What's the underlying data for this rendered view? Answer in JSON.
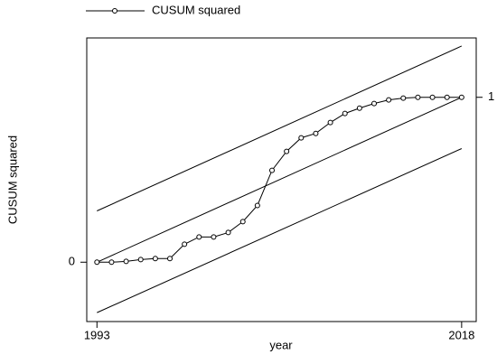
{
  "chart_data": {
    "type": "line",
    "xlabel": "year",
    "ylabel": "CUSUM squared",
    "x": [
      1993,
      1994,
      1995,
      1996,
      1997,
      1998,
      1999,
      2000,
      2001,
      2002,
      2003,
      2004,
      2005,
      2006,
      2007,
      2008,
      2009,
      2010,
      2011,
      2012,
      2013,
      2014,
      2015,
      2016,
      2017,
      2018
    ],
    "series": [
      {
        "name": "CUSUM squared",
        "color": "#000000",
        "values": [
          0,
          0,
          0.005,
          0.016,
          0.022,
          0.022,
          0.109,
          0.153,
          0.153,
          0.18,
          0.246,
          0.344,
          0.557,
          0.672,
          0.754,
          0.781,
          0.847,
          0.902,
          0.934,
          0.962,
          0.984,
          0.995,
          1,
          1,
          1,
          1
        ]
      }
    ],
    "reference_lines": [
      {
        "x": [
          1993,
          2018
        ],
        "values": [
          0.311,
          1.311
        ]
      },
      {
        "x": [
          1993,
          2018
        ],
        "values": [
          0,
          1
        ]
      },
      {
        "x": [
          1993,
          2018
        ],
        "values": [
          -0.306,
          0.689
        ]
      }
    ],
    "xlim": [
      1992.3,
      2019
    ],
    "xticks": [
      1993,
      2018
    ],
    "ylim": [
      -0.36,
      1.36
    ],
    "yticks": [
      0
    ],
    "y2lim": [
      -0.36,
      1.36
    ],
    "y2ticks": [
      1
    ],
    "legend": "top-left",
    "grid": false
  }
}
